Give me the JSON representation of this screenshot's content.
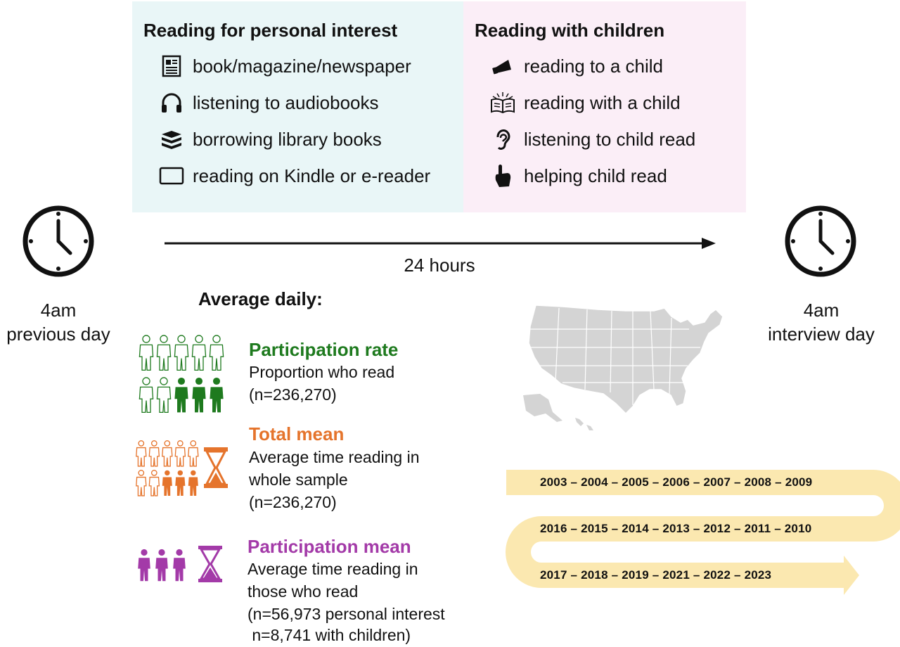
{
  "personal": {
    "title": "Reading for personal interest",
    "items": [
      {
        "label": "book/magazine/newspaper",
        "icon": "newspaper-icon"
      },
      {
        "label": "listening to audiobooks",
        "icon": "headphones-icon"
      },
      {
        "label": "borrowing library books",
        "icon": "book-stack-icon"
      },
      {
        "label": "reading on Kindle or e-reader",
        "icon": "tablet-icon"
      }
    ]
  },
  "children": {
    "title": "Reading with children",
    "items": [
      {
        "label": "reading to a child",
        "icon": "megaphone-icon"
      },
      {
        "label": "reading with a child",
        "icon": "open-book-icon"
      },
      {
        "label": "listening to child read",
        "icon": "ear-icon"
      },
      {
        "label": "helping child read",
        "icon": "pointing-hand-icon"
      }
    ]
  },
  "timeline": {
    "duration": "24 hours",
    "start": {
      "line1": "4am",
      "line2": "previous day"
    },
    "end": {
      "line1": "4am",
      "line2": "interview day"
    }
  },
  "average": {
    "heading": "Average daily:",
    "metrics": [
      {
        "title": "Participation rate",
        "color": "#1e7a1e",
        "lines": [
          "Proportion who read",
          "(n=236,270)"
        ]
      },
      {
        "title": "Total mean",
        "color": "#e5742c",
        "lines": [
          "Average time reading in",
          "whole sample",
          "(n=236,270)"
        ]
      },
      {
        "title": "Participation mean",
        "color": "#a33aa8",
        "lines": [
          "Average time reading in",
          "those who read",
          "(n=56,973 personal interest",
          " n=8,741 with children)"
        ]
      }
    ]
  },
  "years": {
    "row1": "2003 – 2004 – 2005 – 2006 – 2007 – 2008 – 2009",
    "row2": "2016 – 2015 – 2014 – 2013 – 2012 – 2011 – 2010",
    "row3": "2017 – 2018 – 2019 – 2021 – 2022 – 2023",
    "band_color": "#fbe8b0"
  }
}
